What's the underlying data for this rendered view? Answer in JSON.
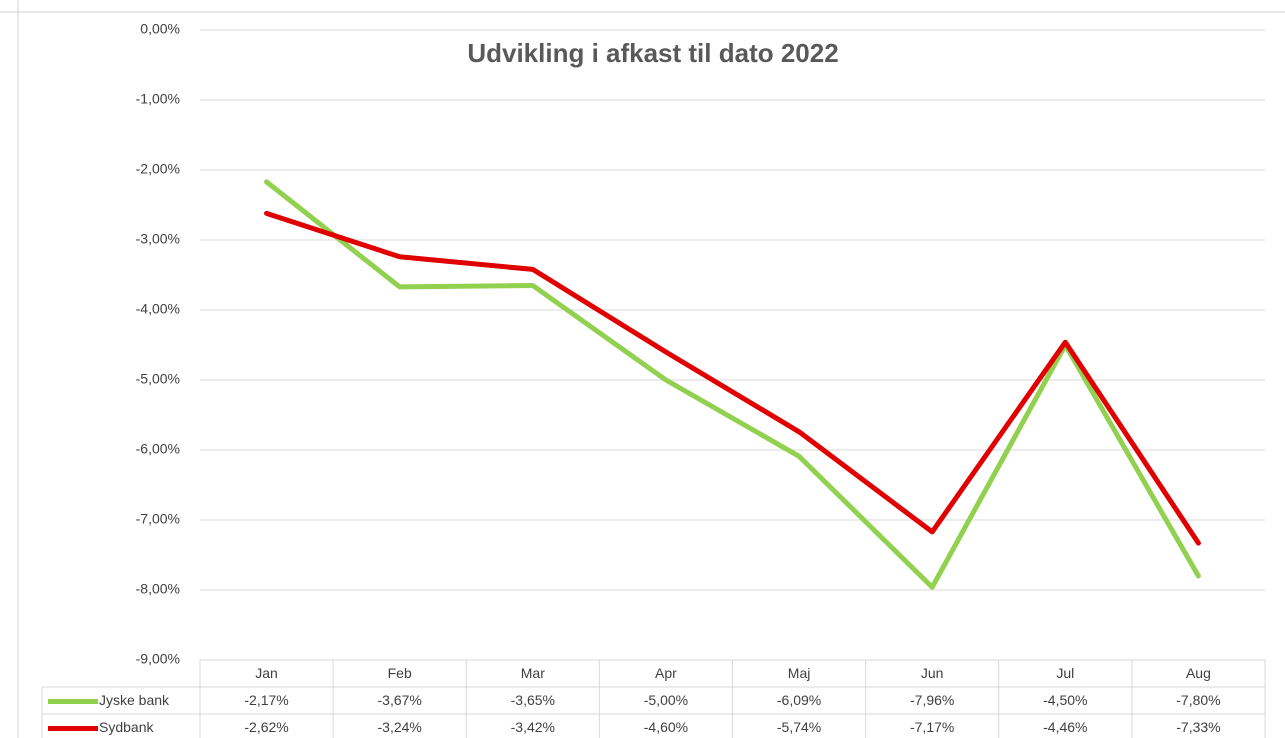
{
  "chart_data": {
    "type": "line",
    "title": "Udvikling i afkast til dato 2022",
    "categories": [
      "Jan",
      "Feb",
      "Mar",
      "Apr",
      "Maj",
      "Jun",
      "Jul",
      "Aug"
    ],
    "series": [
      {
        "name": "Jyske bank",
        "color": "#92d050",
        "values": [
          -2.17,
          -3.67,
          -3.65,
          -5.0,
          -6.09,
          -7.96,
          -4.5,
          -7.8
        ],
        "value_labels": [
          "-2,17%",
          "-3,67%",
          "-3,65%",
          "-5,00%",
          "-6,09%",
          "-7,96%",
          "-4,50%",
          "-7,80%"
        ]
      },
      {
        "name": "Sydbank",
        "color": "#e00000",
        "values": [
          -2.62,
          -3.24,
          -3.42,
          -4.6,
          -5.74,
          -7.17,
          -4.46,
          -7.33
        ],
        "value_labels": [
          "-2,62%",
          "-3,24%",
          "-3,42%",
          "-4,60%",
          "-5,74%",
          "-7,17%",
          "-4,46%",
          "-7,33%"
        ]
      }
    ],
    "ylim": [
      -9,
      0
    ],
    "yticks": [
      {
        "value": 0,
        "label": "0,00%"
      },
      {
        "value": -1,
        "label": "-1,00%"
      },
      {
        "value": -2,
        "label": "-2,00%"
      },
      {
        "value": -3,
        "label": "-3,00%"
      },
      {
        "value": -4,
        "label": "-4,00%"
      },
      {
        "value": -5,
        "label": "-5,00%"
      },
      {
        "value": -6,
        "label": "-6,00%"
      },
      {
        "value": -7,
        "label": "-7,00%"
      },
      {
        "value": -8,
        "label": "-8,00%"
      },
      {
        "value": -9,
        "label": "-9,00%"
      }
    ],
    "grid": true
  }
}
